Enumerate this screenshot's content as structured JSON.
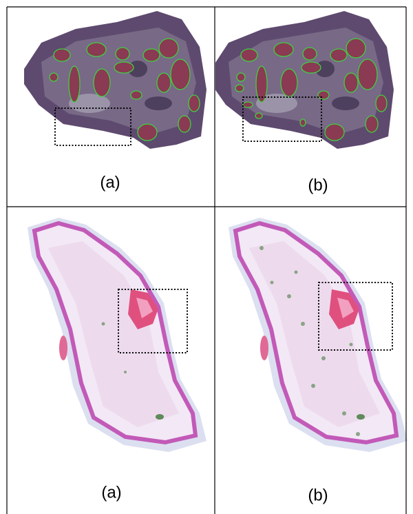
{
  "table": {
    "rows": [
      [
        "(a)",
        "(b)"
      ],
      [
        "(a)",
        "(b)"
      ]
    ]
  }
}
